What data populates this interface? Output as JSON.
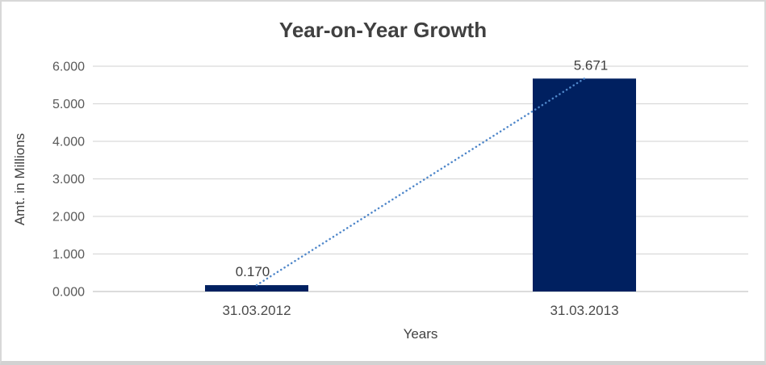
{
  "chart_data": {
    "type": "bar",
    "title": "Year-on-Year Growth",
    "xlabel": "Years",
    "ylabel": "Amt. in Millions",
    "categories": [
      "31.03.2012",
      "31.03.2013"
    ],
    "series": [
      {
        "name": "Amt. in Millions",
        "values": [
          0.17,
          5.671
        ]
      }
    ],
    "data_labels": [
      "0.170",
      "5.671"
    ],
    "ylim": [
      0,
      6
    ],
    "ytick_values": [
      0,
      1,
      2,
      3,
      4,
      5,
      6
    ],
    "ytick_labels": [
      "0.000",
      "1.000",
      "2.000",
      "3.000",
      "4.000",
      "5.000",
      "6.000"
    ],
    "grid": true,
    "legend": false,
    "trendline": {
      "style": "dotted",
      "connects": [
        "31.03.2012",
        "31.03.2013"
      ]
    },
    "colors": {
      "bar_fill": "#002060",
      "trendline": "#4f87ca",
      "gridline": "#d9d9d9",
      "axis_line": "#c6c6c6",
      "title_text": "#404040",
      "tick_text": "#595959"
    }
  }
}
